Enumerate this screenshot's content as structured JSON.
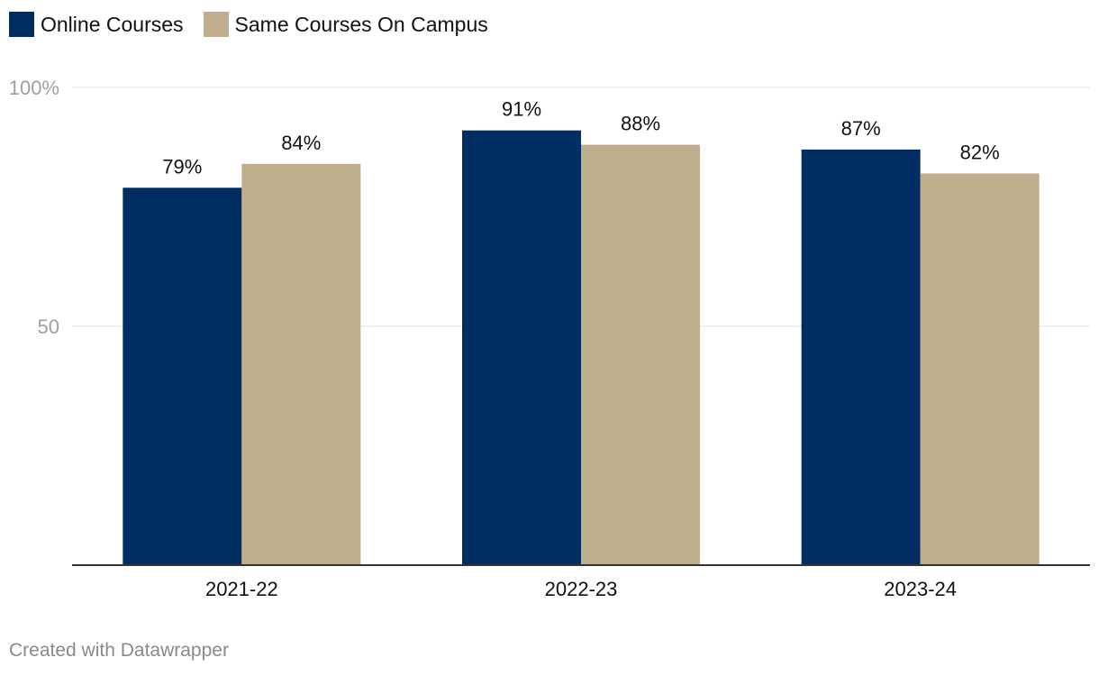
{
  "chart_data": {
    "type": "bar",
    "categories": [
      "2021-22",
      "2022-23",
      "2023-24"
    ],
    "series": [
      {
        "name": "Online Courses",
        "values": [
          79,
          91,
          87
        ],
        "labels": [
          "79%",
          "91%",
          "87%"
        ],
        "color": "#002e62"
      },
      {
        "name": "Same Courses On Campus",
        "values": [
          84,
          88,
          82
        ],
        "labels": [
          "84%",
          "88%",
          "82%"
        ],
        "color": "#bfae8c"
      }
    ],
    "yticks": [
      {
        "value": 50,
        "label": "50"
      },
      {
        "value": 100,
        "label": "100%"
      }
    ],
    "ylim": [
      0,
      100
    ],
    "grid": true,
    "legend_position": "top-left"
  },
  "footer": {
    "credit": "Created with Datawrapper"
  },
  "colors": {
    "grid": "#e0e0e0",
    "axis": "#333333",
    "tick_label": "#a0a0a0",
    "text": "#111111"
  }
}
